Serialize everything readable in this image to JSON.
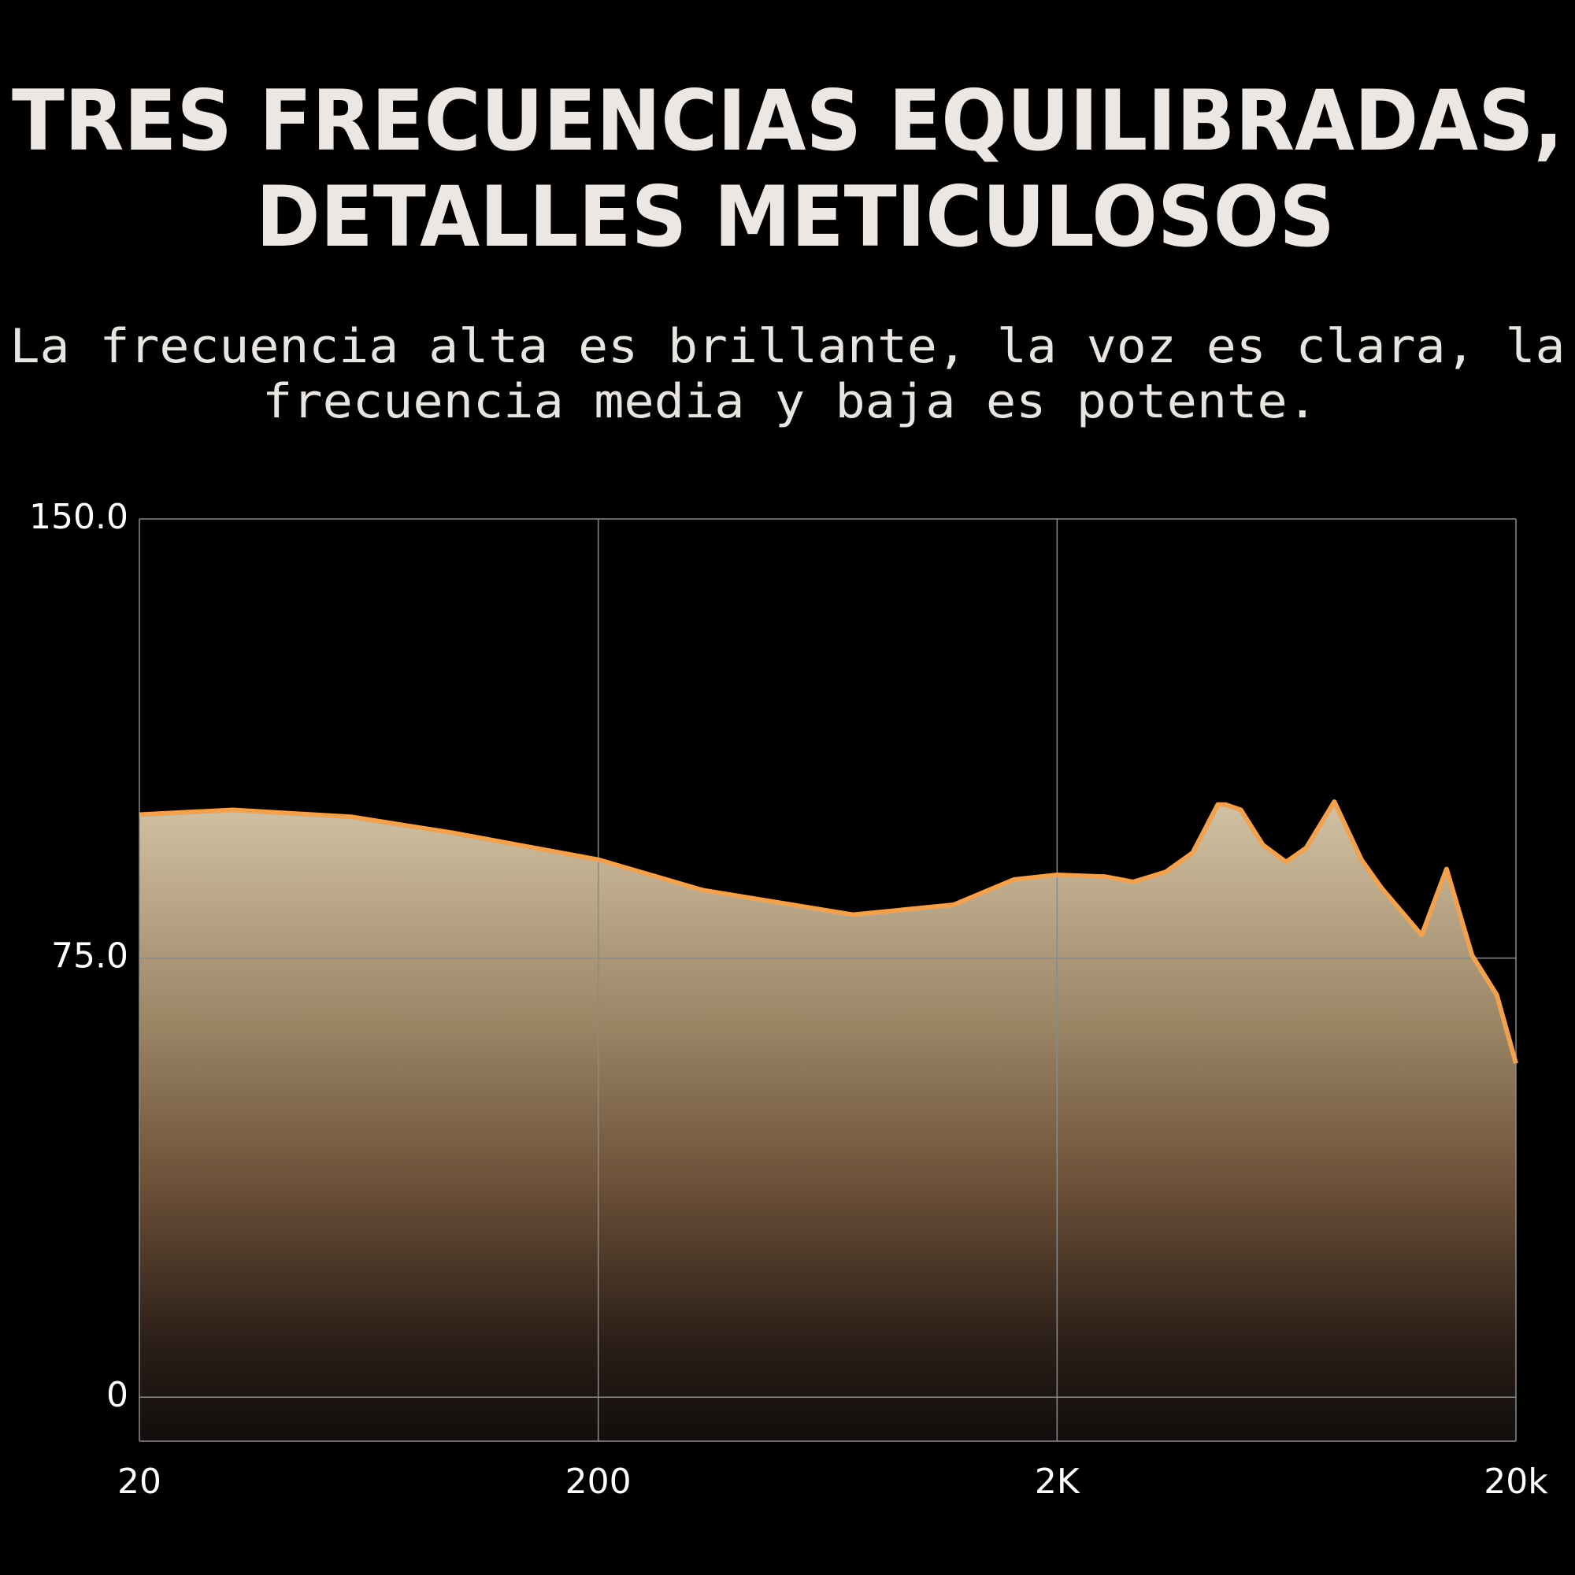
{
  "chart_data": {
    "type": "area",
    "title": [
      "TRES FRECUENCIAS EQUILIBRADAS,",
      "DETALLES METICULOSOS"
    ],
    "subtitle": [
      "La frecuencia alta es brillante, la voz es clara, la",
      "frecuencia media y baja es potente."
    ],
    "x": [
      20,
      32,
      58,
      96,
      200,
      338,
      718,
      1190,
      1610,
      2000,
      2550,
      2930,
      3450,
      3950,
      4480,
      4660,
      5030,
      5620,
      6310,
      6980,
      8040,
      9210,
      10180,
      12460,
      14120,
      16040,
      18170,
      20000
    ],
    "values": [
      99.5,
      100.3,
      99.1,
      96.4,
      91.8,
      86.6,
      82.4,
      84.1,
      88.4,
      89.2,
      88.9,
      88.0,
      89.7,
      93.0,
      101.2,
      101.2,
      100.3,
      94.3,
      91.4,
      93.8,
      101.7,
      91.8,
      87.0,
      78.9,
      90.2,
      75.5,
      68.7,
      57.0
    ],
    "color": "#f2a24f",
    "xscale": "log",
    "xlim": [
      20,
      20000
    ],
    "xticks": [
      {
        "value": 20,
        "label": "20"
      },
      {
        "value": 200,
        "label": "200"
      },
      {
        "value": 2000,
        "label": "2K"
      },
      {
        "value": 20000,
        "label": "20k"
      }
    ],
    "ylim": [
      -7.5,
      150
    ],
    "yticks": [
      0,
      {
        "value": 75,
        "label": "75.0"
      },
      {
        "value": 150,
        "label": "150.0"
      }
    ],
    "grid": true
  }
}
